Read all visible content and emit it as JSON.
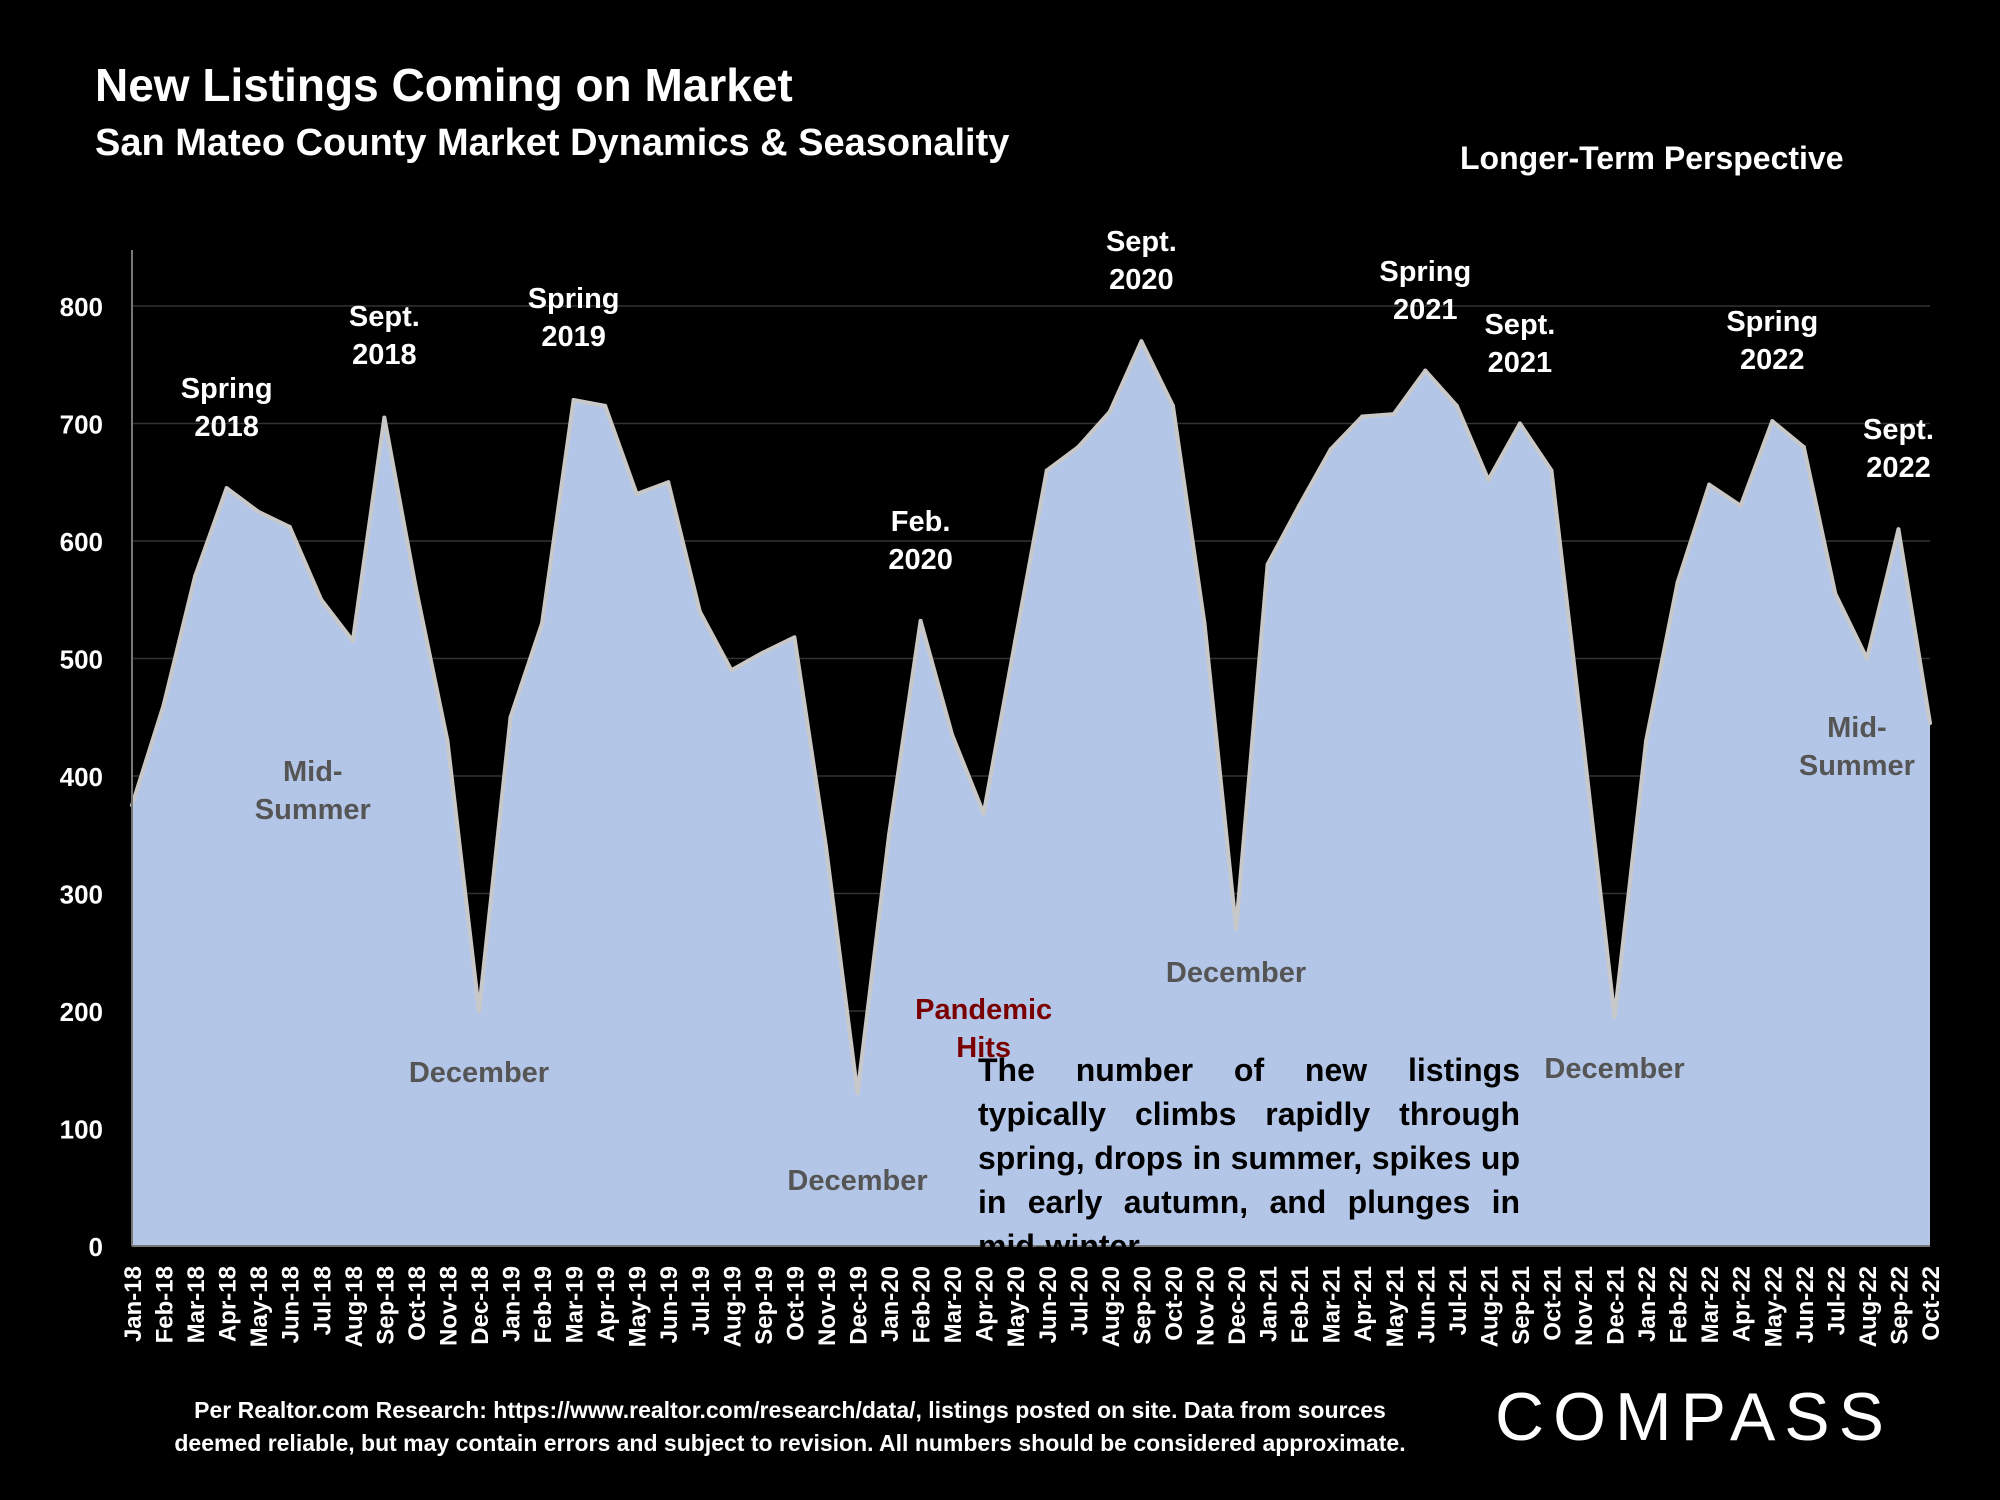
{
  "header": {
    "title": "New Listings Coming on Market",
    "subtitle": "San Mateo County Market Dynamics & Seasonality",
    "perspective": "Longer-Term Perspective"
  },
  "note": "The number of new listings typically climbs rapidly through spring, drops in summer, spikes up in early autumn, and plunges in mid-winter.",
  "footer": {
    "line1": "Per Realtor.com Research:  https://www.realtor.com/research/data/, listings posted on site. Data from sources",
    "line2": "deemed reliable, but may contain errors and subject to revision. All numbers should be considered approximate."
  },
  "logo": "COMPASS",
  "colors": {
    "area_fill": "#b4c6e7",
    "area_stroke": "#c8c8c8",
    "background": "#000000",
    "grid": "#333333",
    "pandemic_label": "#7a0000"
  },
  "chart_data": {
    "type": "area",
    "title": "New Listings Coming on Market",
    "subtitle": "San Mateo County Market Dynamics & Seasonality",
    "xlabel": "",
    "ylabel": "",
    "ylim": [
      0,
      850
    ],
    "yticks": [
      0,
      100,
      200,
      300,
      400,
      500,
      600,
      700,
      800
    ],
    "grid": true,
    "legend": "none",
    "categories": [
      "Jan-18",
      "Feb-18",
      "Mar-18",
      "Apr-18",
      "May-18",
      "Jun-18",
      "Jul-18",
      "Aug-18",
      "Sep-18",
      "Oct-18",
      "Nov-18",
      "Dec-18",
      "Jan-19",
      "Feb-19",
      "Mar-19",
      "Apr-19",
      "May-19",
      "Jun-19",
      "Jul-19",
      "Aug-19",
      "Sep-19",
      "Oct-19",
      "Nov-19",
      "Dec-19",
      "Jan-20",
      "Feb-20",
      "Mar-20",
      "Apr-20",
      "May-20",
      "Jun-20",
      "Jul-20",
      "Aug-20",
      "Sep-20",
      "Oct-20",
      "Nov-20",
      "Dec-20",
      "Jan-21",
      "Feb-21",
      "Mar-21",
      "Apr-21",
      "May-21",
      "Jun-21",
      "Jul-21",
      "Aug-21",
      "Sep-21",
      "Oct-21",
      "Nov-21",
      "Dec-21",
      "Jan-22",
      "Feb-22",
      "Mar-22",
      "Apr-22",
      "May-22",
      "Jun-22",
      "Jul-22",
      "Aug-22",
      "Sep-22",
      "Oct-22"
    ],
    "series": [
      {
        "values": [
          375,
          460,
          570,
          645,
          625,
          612,
          550,
          515,
          705,
          560,
          430,
          200,
          450,
          530,
          720,
          715,
          640,
          650,
          540,
          490,
          505,
          518,
          340,
          130,
          350,
          532,
          435,
          368,
          515,
          660,
          680,
          710,
          770,
          715,
          530,
          270,
          580,
          630,
          678,
          706,
          708,
          745,
          715,
          652,
          700,
          660,
          430,
          195,
          430,
          565,
          648,
          630,
          702,
          680,
          555,
          500,
          610,
          445
        ]
      }
    ],
    "annotations": [
      {
        "text": "Spring\n2018",
        "index": 3,
        "value": 645,
        "style": "light"
      },
      {
        "text": "Sept.\n2018",
        "index": 8,
        "value": 705,
        "style": "light"
      },
      {
        "text": "Mid-\nSummer",
        "index": 7,
        "value": 515,
        "style": "dark"
      },
      {
        "text": "December",
        "index": 11,
        "value": 200,
        "style": "dark"
      },
      {
        "text": "Spring\n2019",
        "index": 14,
        "value": 720,
        "style": "light"
      },
      {
        "text": "December",
        "index": 23,
        "value": 130,
        "style": "dark"
      },
      {
        "text": "Feb.\n2020",
        "index": 25,
        "value": 532,
        "style": "light"
      },
      {
        "text": "Pandemic\nHits",
        "index": 27,
        "value": 368,
        "style": "red"
      },
      {
        "text": "Sept.\n2020",
        "index": 32,
        "value": 770,
        "style": "light"
      },
      {
        "text": "December",
        "index": 35,
        "value": 270,
        "style": "dark"
      },
      {
        "text": "Spring\n2021",
        "index": 41,
        "value": 745,
        "style": "light"
      },
      {
        "text": "Sept.\n2021",
        "index": 44,
        "value": 700,
        "style": "light"
      },
      {
        "text": "December",
        "index": 47,
        "value": 195,
        "style": "dark"
      },
      {
        "text": "Spring\n2022",
        "index": 52,
        "value": 702,
        "style": "light"
      },
      {
        "text": "Sept.\n2022",
        "index": 56,
        "value": 610,
        "style": "light"
      },
      {
        "text": "Mid-\nSummer",
        "index": 55,
        "value": 500,
        "style": "dark"
      }
    ]
  }
}
